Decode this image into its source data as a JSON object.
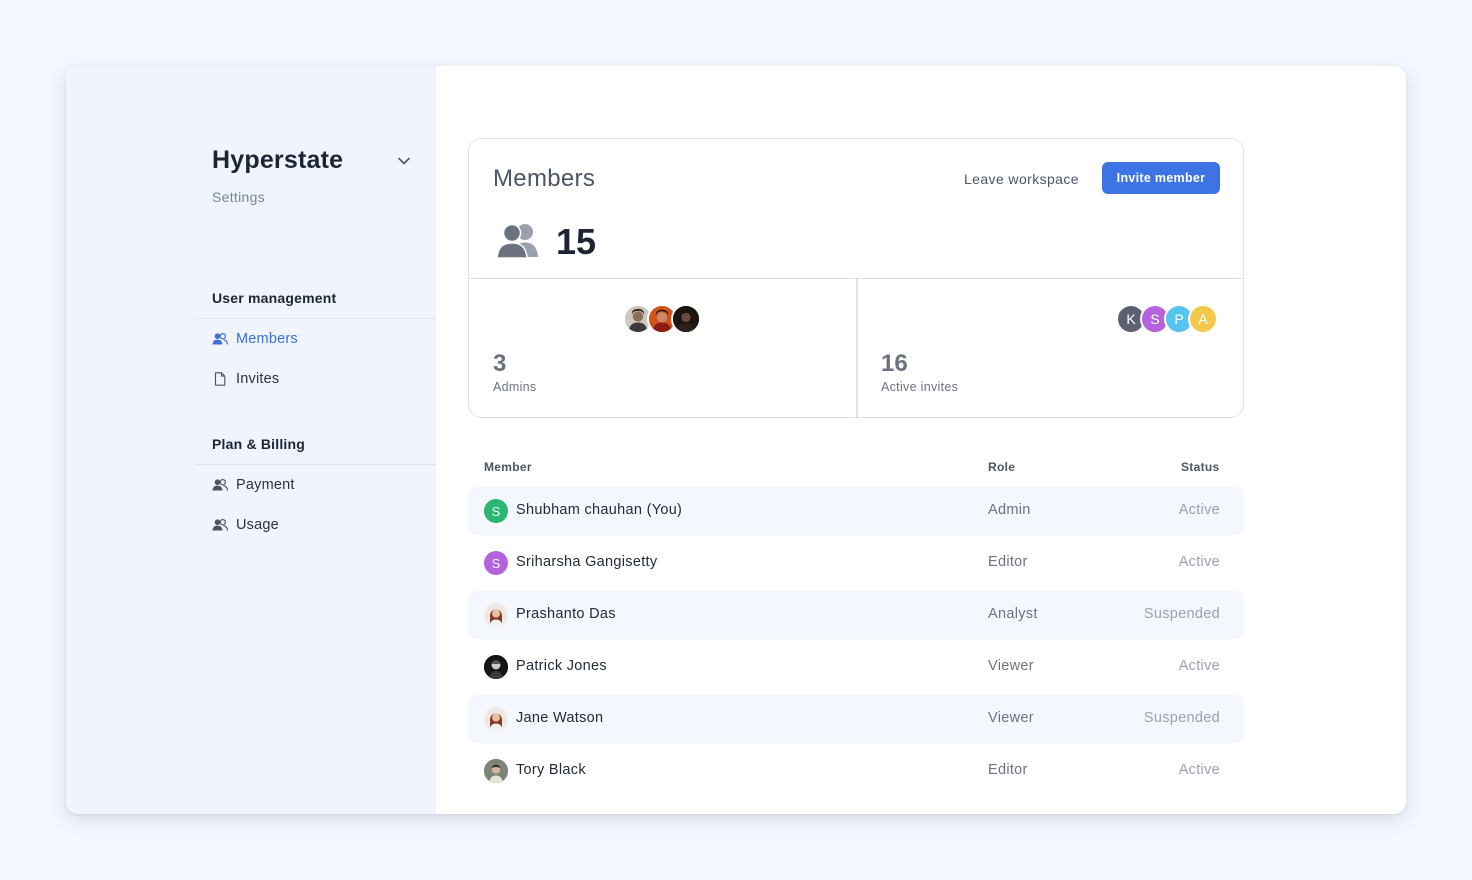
{
  "workspace": {
    "name": "Hyperstate",
    "subtitle": "Settings"
  },
  "sidebar": {
    "sections": [
      {
        "title": "User management",
        "items": [
          {
            "label": "Members",
            "icon": "users-icon",
            "active": true
          },
          {
            "label": "Invites",
            "icon": "document-icon",
            "active": false
          }
        ]
      },
      {
        "title": "Plan & Billing",
        "items": [
          {
            "label": "Payment",
            "icon": "users-icon",
            "active": false
          },
          {
            "label": "Usage",
            "icon": "users-icon",
            "active": false
          }
        ]
      }
    ]
  },
  "members_card": {
    "title": "Members",
    "leave_label": "Leave workspace",
    "invite_label": "Invite member",
    "total": "15",
    "admins": {
      "count": "3",
      "label": "Admins"
    },
    "invites": {
      "count": "16",
      "label": "Active invites",
      "avatars": [
        {
          "letter": "K",
          "color": "#5b6170"
        },
        {
          "letter": "S",
          "color": "#b463dc"
        },
        {
          "letter": "P",
          "color": "#55c4ee"
        },
        {
          "letter": "A",
          "color": "#f2c94c"
        }
      ]
    }
  },
  "table": {
    "headers": {
      "member": "Member",
      "role": "Role",
      "status": "Status"
    },
    "rows": [
      {
        "name": "Shubham chauhan (You)",
        "role": "Admin",
        "status": "Active",
        "avatar": {
          "letter": "S",
          "color": "#2bb673"
        }
      },
      {
        "name": "Sriharsha Gangisetty",
        "role": "Editor",
        "status": "Active",
        "avatar": {
          "letter": "S",
          "color": "#b463dc"
        }
      },
      {
        "name": "Prashanto Das",
        "role": "Analyst",
        "status": "Suspended",
        "avatar": {
          "photo": "photo-woman"
        }
      },
      {
        "name": "Patrick Jones",
        "role": "Viewer",
        "status": "Active",
        "avatar": {
          "photo": "photo-dark"
        }
      },
      {
        "name": "Jane Watson",
        "role": "Viewer",
        "status": "Suspended",
        "avatar": {
          "photo": "photo-woman"
        }
      },
      {
        "name": "Tory Black",
        "role": "Editor",
        "status": "Active",
        "avatar": {
          "photo": "photo-man"
        }
      }
    ]
  },
  "colors": {
    "accent": "#3d73e3",
    "active_nav": "#3d6fd8",
    "sidebar_bg": "#eff4fd",
    "row_shade": "#f4f7fd"
  }
}
